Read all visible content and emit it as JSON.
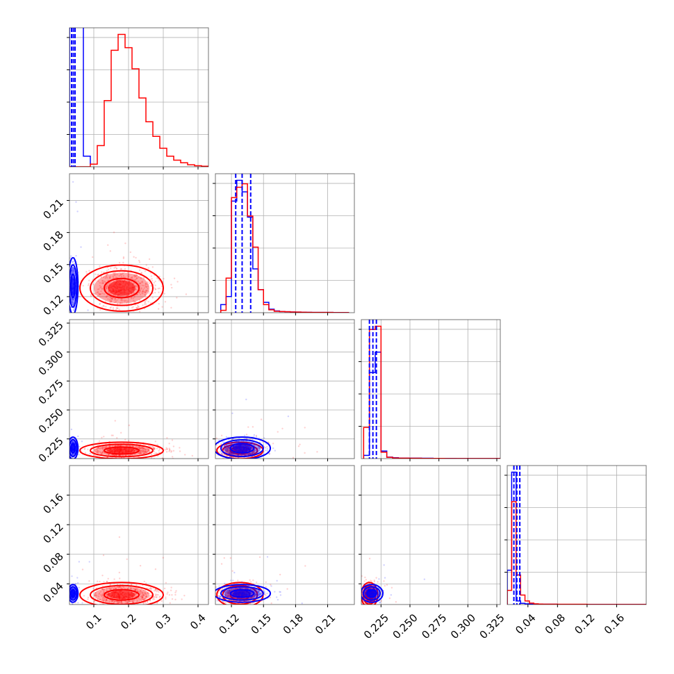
{
  "colors": {
    "red": "#ff0000",
    "blue": "#0000ff",
    "grid": "#b0b0b0",
    "frame": "#000000"
  },
  "chart_data": {
    "type": "corner",
    "n_params": 4,
    "params": [
      {
        "range": [
          0.03,
          0.43
        ],
        "ticks": [
          0.1,
          0.2,
          0.3,
          0.4
        ],
        "tick_labels": [
          "0.1",
          "0.2",
          "0.3",
          "0.4"
        ]
      },
      {
        "range": [
          0.105,
          0.235
        ],
        "ticks": [
          0.12,
          0.15,
          0.18,
          0.21
        ],
        "tick_labels": [
          "0.12",
          "0.15",
          "0.18",
          "0.21"
        ]
      },
      {
        "range": [
          0.208,
          0.328
        ],
        "ticks": [
          0.225,
          0.25,
          0.275,
          0.3,
          0.325
        ],
        "tick_labels": [
          "0.225",
          "0.250",
          "0.275",
          "0.300",
          "0.325"
        ]
      },
      {
        "range": [
          0.012,
          0.2
        ],
        "ticks": [
          0.04,
          0.08,
          0.12,
          0.16
        ],
        "tick_labels": [
          "0.04",
          "0.08",
          "0.12",
          "0.16"
        ]
      }
    ],
    "series": [
      {
        "color": "red",
        "centers": [
          0.18,
          0.128,
          0.215,
          0.025
        ],
        "spread": [
          0.05,
          0.009,
          0.003,
          0.007
        ],
        "histograms": [
          {
            "bin_edges": [
              0.03,
              0.05,
              0.07,
              0.09,
              0.11,
              0.13,
              0.15,
              0.17,
              0.19,
              0.21,
              0.23,
              0.25,
              0.27,
              0.29,
              0.31,
              0.33,
              0.35,
              0.37,
              0.39,
              0.41,
              0.43
            ],
            "counts": [
              0,
              0,
              0,
              0.02,
              0.16,
              0.5,
              0.88,
              1.0,
              0.9,
              0.74,
              0.52,
              0.34,
              0.23,
              0.14,
              0.08,
              0.05,
              0.03,
              0.015,
              0.008,
              0.004
            ]
          },
          {
            "bin_edges": [
              0.11,
              0.115,
              0.12,
              0.125,
              0.13,
              0.135,
              0.14,
              0.145,
              0.15,
              0.155,
              0.16,
              0.165,
              0.17,
              0.175,
              0.18,
              0.185,
              0.19,
              0.195,
              0.2,
              0.205,
              0.21,
              0.215,
              0.22,
              0.225,
              0.23
            ],
            "counts": [
              0.02,
              0.3,
              1.0,
              1.09,
              1.12,
              0.84,
              0.57,
              0.2,
              0.07,
              0.025,
              0.012,
              0.01,
              0.008,
              0.006,
              0.005,
              0.004,
              0.003,
              0.002,
              0.002,
              0.002,
              0.002,
              0.001,
              0.001,
              0.001
            ]
          },
          {
            "bin_edges": [
              0.21,
              0.215,
              0.22,
              0.225,
              0.23,
              0.235,
              0.24,
              0.25,
              0.26,
              0.27,
              0.28,
              0.29,
              0.3,
              0.31,
              0.32,
              0.328
            ],
            "counts": [
              0.29,
              1.2,
              1.23,
              0.06,
              0.012,
              0.006,
              0.004,
              0.003,
              0.002,
              0.002,
              0.001,
              0.001,
              0.001,
              0.001,
              0.001
            ]
          },
          {
            "bin_edges": [
              0.012,
              0.018,
              0.024,
              0.03,
              0.036,
              0.042,
              0.048,
              0.054,
              0.06,
              0.08,
              0.1,
              0.12,
              0.14,
              0.16,
              0.18,
              0.2
            ],
            "counts": [
              0.12,
              0.87,
              0.25,
              0.08,
              0.03,
              0.012,
              0.006,
              0.004,
              0.003,
              0.002,
              0.002,
              0.001,
              0.001,
              0.001,
              0.001
            ]
          }
        ]
      },
      {
        "color": "blue",
        "centers": [
          0.04,
          0.13,
          0.217,
          0.027
        ],
        "spread": [
          0.006,
          0.011,
          0.004,
          0.005
        ],
        "quantile_lines": [
          [
            0.036,
            0.041,
            0.046
          ],
          [
            0.124,
            0.13,
            0.138
          ],
          [
            0.215,
            0.218,
            0.221
          ],
          [
            0.021,
            0.025,
            0.029
          ]
        ],
        "histograms": [
          {
            "bin_edges": [
              0.03,
              0.035,
              0.04,
              0.045,
              0.05,
              0.055,
              0.06,
              0.065,
              0.07,
              0.075,
              0.08,
              0.085,
              0.09,
              0.095
            ],
            "counts": [
              4.0,
              4.0,
              4.0,
              4.0,
              4.0,
              4.0,
              4.0,
              1.8,
              0.08,
              0.08,
              0.08,
              0.08,
              0.02
            ]
          },
          {
            "bin_edges": [
              0.11,
              0.115,
              0.12,
              0.125,
              0.13,
              0.135,
              0.14,
              0.145,
              0.15,
              0.155,
              0.16,
              0.165,
              0.17,
              0.175,
              0.18,
              0.185,
              0.19,
              0.195,
              0.2,
              0.205,
              0.21,
              0.215,
              0.22,
              0.225,
              0.23
            ],
            "counts": [
              0.07,
              0.14,
              0.97,
              1.15,
              1.05,
              0.83,
              0.38,
              0.2,
              0.09,
              0.03,
              0.015,
              0.01,
              0.008,
              0.006,
              0.005,
              0.004,
              0.003,
              0.002,
              0.002,
              0.002,
              0.002,
              0.001,
              0.001,
              0.001
            ]
          },
          {
            "bin_edges": [
              0.21,
              0.215,
              0.22,
              0.225,
              0.23,
              0.235,
              0.24,
              0.25,
              0.26,
              0.27,
              0.28,
              0.29,
              0.3,
              0.31,
              0.32,
              0.328
            ],
            "counts": [
              0.03,
              0.8,
              0.99,
              0.07,
              0.014,
              0.008,
              0.005,
              0.004,
              0.003,
              0.002,
              0.002,
              0.001,
              0.001,
              0.001,
              0.001
            ]
          },
          {
            "bin_edges": [
              0.012,
              0.018,
              0.024,
              0.03,
              0.036,
              0.042,
              0.048,
              0.054,
              0.06,
              0.08,
              0.1,
              0.12,
              0.14,
              0.16,
              0.18,
              0.2
            ],
            "counts": [
              0.29,
              1.12,
              0.03,
              0.01,
              0.006,
              0.004,
              0.003,
              0.002,
              0.002,
              0.001,
              0.001,
              0.001,
              0.001,
              0.001,
              0.001
            ]
          }
        ]
      }
    ],
    "grid": true
  }
}
